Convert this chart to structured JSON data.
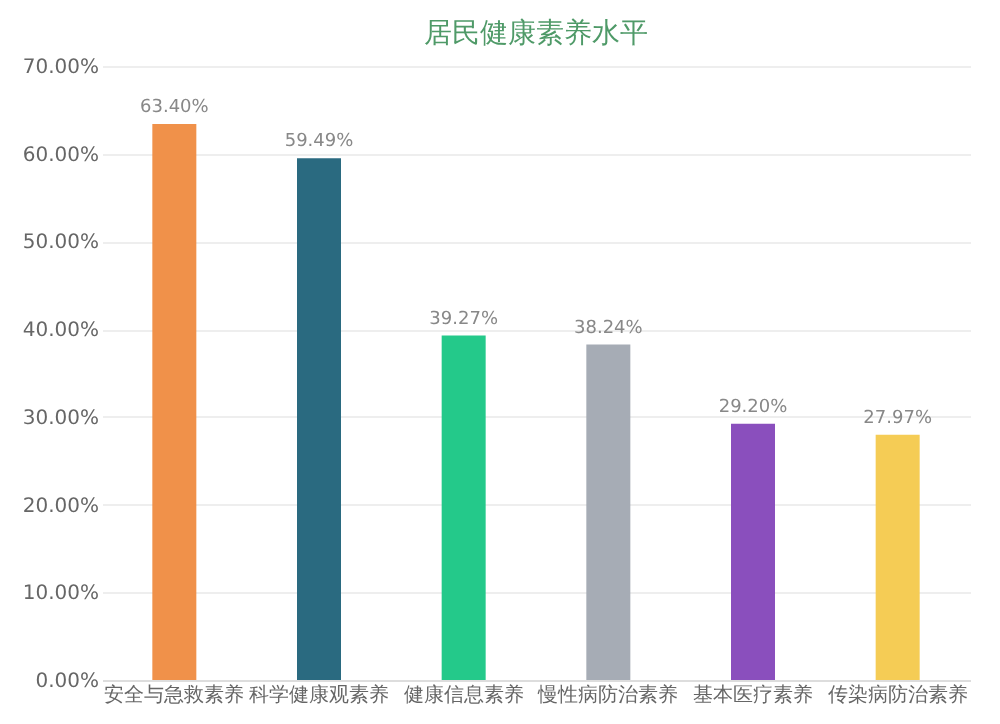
{
  "chart_data": {
    "type": "bar",
    "title": "居民健康素养水平",
    "categories": [
      "安全与急救素养",
      "科学健康观素养",
      "健康信息素养",
      "慢性病防治素养",
      "基本医疗素养",
      "传染病防治素养"
    ],
    "values": [
      63.4,
      59.49,
      39.27,
      38.24,
      29.2,
      27.97
    ],
    "colors": [
      "#f0914a",
      "#2a6a80",
      "#24c98a",
      "#a6acb5",
      "#8a4fbd",
      "#f5cc55"
    ],
    "value_labels": [
      "63.40%",
      "59.49%",
      "39.27%",
      "38.24%",
      "29.20%",
      "27.97%"
    ],
    "ylim": [
      0,
      70
    ],
    "yticks": [
      {
        "value": 0,
        "label": "0.00%"
      },
      {
        "value": 10,
        "label": "10.00%"
      },
      {
        "value": 20,
        "label": "20.00%"
      },
      {
        "value": 30,
        "label": "30.00%"
      },
      {
        "value": 40,
        "label": "40.00%"
      },
      {
        "value": 50,
        "label": "50.00%"
      },
      {
        "value": 60,
        "label": "60.00%"
      },
      {
        "value": 70,
        "label": "70.00%"
      }
    ],
    "grid": "y",
    "legend": false
  }
}
